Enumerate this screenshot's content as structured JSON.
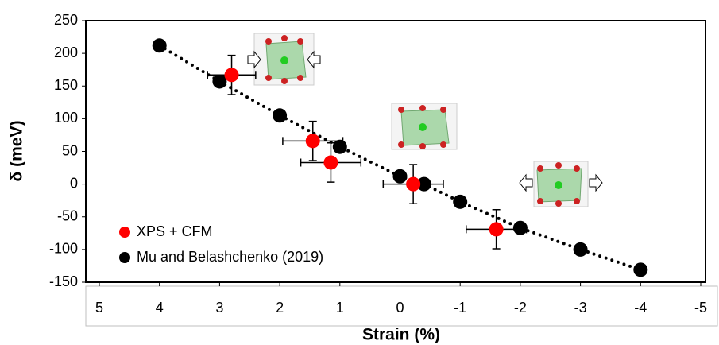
{
  "chart_data": {
    "type": "scatter",
    "x_label": "Strain (%)",
    "y_label": "δ (meV)",
    "xlim": [
      5,
      -5
    ],
    "xticks": [
      5,
      4,
      3,
      2,
      1,
      0,
      -1,
      -2,
      -3,
      -4,
      -5
    ],
    "ylim": [
      -150,
      250
    ],
    "yticks": [
      -150,
      -100,
      -50,
      0,
      50,
      100,
      150,
      200,
      250
    ],
    "legend": "lower left",
    "trendline": "dotted",
    "series": [
      {
        "name": "XPS + CFM",
        "color": "#ff0000",
        "x": [
          2.8,
          1.45,
          1.15,
          -0.22,
          -1.6
        ],
        "values": [
          167,
          66,
          33,
          0,
          -69
        ],
        "xerr": [
          0.4,
          0.5,
          0.5,
          0.5,
          0.5
        ],
        "yerr": [
          30,
          30,
          30,
          30,
          30
        ]
      },
      {
        "name": "Mu and Belashchenko (2019)",
        "color": "#000000",
        "x": [
          4,
          3,
          2,
          1,
          0,
          -0.4,
          -1,
          -2,
          -3,
          -4
        ],
        "values": [
          212,
          157,
          105,
          57,
          12,
          0,
          -27,
          -67,
          -100,
          -131
        ]
      }
    ]
  }
}
